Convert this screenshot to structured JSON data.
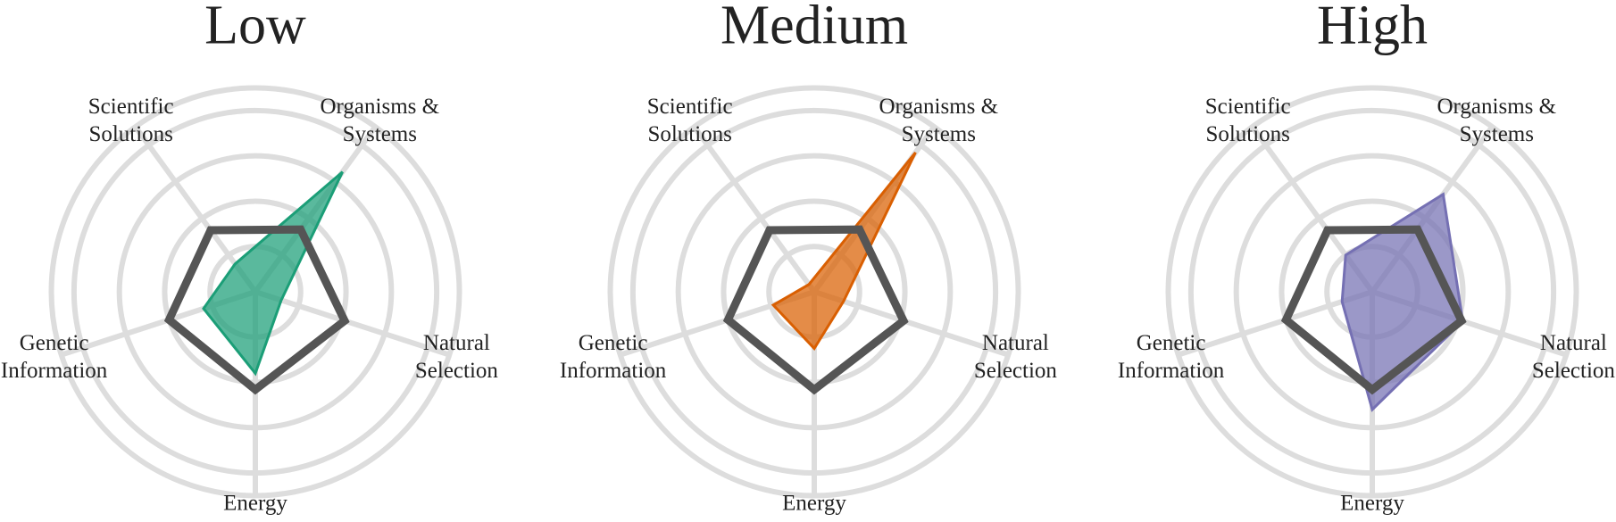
{
  "chart_data": [
    {
      "type": "radar",
      "title": "Low",
      "categories": [
        "Organisms & Systems",
        "Natural Selection",
        "Energy",
        "Genetic Information",
        "Scientific Solutions"
      ],
      "rlim": [
        0,
        4.5
      ],
      "rticks": [
        1,
        2,
        3,
        4
      ],
      "series": [
        {
          "color": "#1b9e77",
          "values": [
            3.27,
            0.6,
            1.8,
            1.2,
            0.76
          ]
        },
        {
          "color": "#555555",
          "values": [
            1.7,
            2.07,
            2.16,
            2.0,
            1.68
          ]
        }
      ]
    },
    {
      "type": "radar",
      "title": "Medium",
      "categories": [
        "Organisms & Systems",
        "Natural Selection",
        "Energy",
        "Genetic Information",
        "Scientific Solutions"
      ],
      "rlim": [
        0,
        4.5
      ],
      "rticks": [
        1,
        2,
        3,
        4
      ],
      "series": [
        {
          "color": "#d95f02",
          "values": [
            3.8,
            0.68,
            1.25,
            0.95,
            0.2
          ]
        },
        {
          "color": "#555555",
          "values": [
            1.7,
            2.07,
            2.16,
            2.0,
            1.68
          ]
        }
      ]
    },
    {
      "type": "radar",
      "title": "High",
      "categories": [
        "Organisms & Systems",
        "Natural Selection",
        "Energy",
        "Genetic Information",
        "Scientific Solutions"
      ],
      "rlim": [
        0,
        4.5
      ],
      "rticks": [
        1,
        2,
        3,
        4
      ],
      "series": [
        {
          "color": "#7570b3",
          "values": [
            2.66,
            2.1,
            2.6,
            0.7,
            1.0
          ]
        },
        {
          "color": "#555555",
          "values": [
            1.7,
            2.07,
            2.16,
            2.0,
            1.68
          ]
        }
      ]
    }
  ]
}
